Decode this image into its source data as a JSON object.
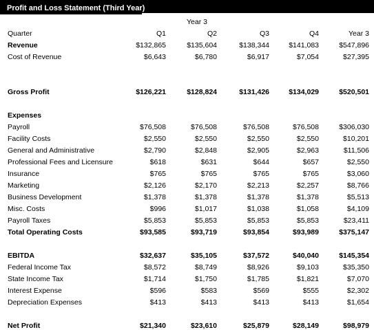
{
  "title": "Profit and Loss Statement (Third Year)",
  "year_label": "Year 3",
  "header": {
    "quarter": "Quarter",
    "q1": "Q1",
    "q2": "Q2",
    "q3": "Q3",
    "q4": "Q4",
    "total": "Year 3"
  },
  "revenue": {
    "label": "Revenue",
    "q1": "$132,865",
    "q2": "$135,604",
    "q3": "$138,344",
    "q4": "$141,083",
    "total": "$547,896"
  },
  "cost_of_revenue": {
    "label": "Cost of Revenue",
    "q1": "$6,643",
    "q2": "$6,780",
    "q3": "$6,917",
    "q4": "$7,054",
    "total": "$27,395"
  },
  "gross_profit": {
    "label": "Gross Profit",
    "q1": "$126,221",
    "q2": "$128,824",
    "q3": "$131,426",
    "q4": "$134,029",
    "total": "$520,501"
  },
  "expenses_heading": "Expenses",
  "expenses": [
    {
      "label": "Payroll",
      "q1": "$76,508",
      "q2": "$76,508",
      "q3": "$76,508",
      "q4": "$76,508",
      "total": "$306,030"
    },
    {
      "label": "Facility Costs",
      "q1": "$2,550",
      "q2": "$2,550",
      "q3": "$2,550",
      "q4": "$2,550",
      "total": "$10,201"
    },
    {
      "label": "General and Administrative",
      "q1": "$2,790",
      "q2": "$2,848",
      "q3": "$2,905",
      "q4": "$2,963",
      "total": "$11,506"
    },
    {
      "label": "Professional Fees and Licensure",
      "q1": "$618",
      "q2": "$631",
      "q3": "$644",
      "q4": "$657",
      "total": "$2,550"
    },
    {
      "label": "Insurance",
      "q1": "$765",
      "q2": "$765",
      "q3": "$765",
      "q4": "$765",
      "total": "$3,060"
    },
    {
      "label": "Marketing",
      "q1": "$2,126",
      "q2": "$2,170",
      "q3": "$2,213",
      "q4": "$2,257",
      "total": "$8,766"
    },
    {
      "label": "Business Development",
      "q1": "$1,378",
      "q2": "$1,378",
      "q3": "$1,378",
      "q4": "$1,378",
      "total": "$5,513"
    },
    {
      "label": "Misc. Costs",
      "q1": "$996",
      "q2": "$1,017",
      "q3": "$1,038",
      "q4": "$1,058",
      "total": "$4,109"
    },
    {
      "label": "Payroll Taxes",
      "q1": "$5,853",
      "q2": "$5,853",
      "q3": "$5,853",
      "q4": "$5,853",
      "total": "$23,411"
    }
  ],
  "total_operating_costs": {
    "label": "Total Operating Costs",
    "q1": "$93,585",
    "q2": "$93,719",
    "q3": "$93,854",
    "q4": "$93,989",
    "total": "$375,147"
  },
  "ebitda": {
    "label": "EBITDA",
    "q1": "$32,637",
    "q2": "$35,105",
    "q3": "$37,572",
    "q4": "$40,040",
    "total": "$145,354"
  },
  "below_ebitda": [
    {
      "label": "Federal Income Tax",
      "q1": "$8,572",
      "q2": "$8,749",
      "q3": "$8,926",
      "q4": "$9,103",
      "total": "$35,350"
    },
    {
      "label": "State Income Tax",
      "q1": "$1,714",
      "q2": "$1,750",
      "q3": "$1,785",
      "q4": "$1,821",
      "total": "$7,070"
    },
    {
      "label": "Interest Expense",
      "q1": "$596",
      "q2": "$583",
      "q3": "$569",
      "q4": "$555",
      "total": "$2,302"
    },
    {
      "label": "Depreciation Expenses",
      "q1": "$413",
      "q2": "$413",
      "q3": "$413",
      "q4": "$413",
      "total": "$1,654"
    }
  ],
  "net_profit": {
    "label": "Net Profit",
    "q1": "$21,340",
    "q2": "$23,610",
    "q3": "$25,879",
    "q4": "$28,149",
    "total": "$98,979"
  }
}
